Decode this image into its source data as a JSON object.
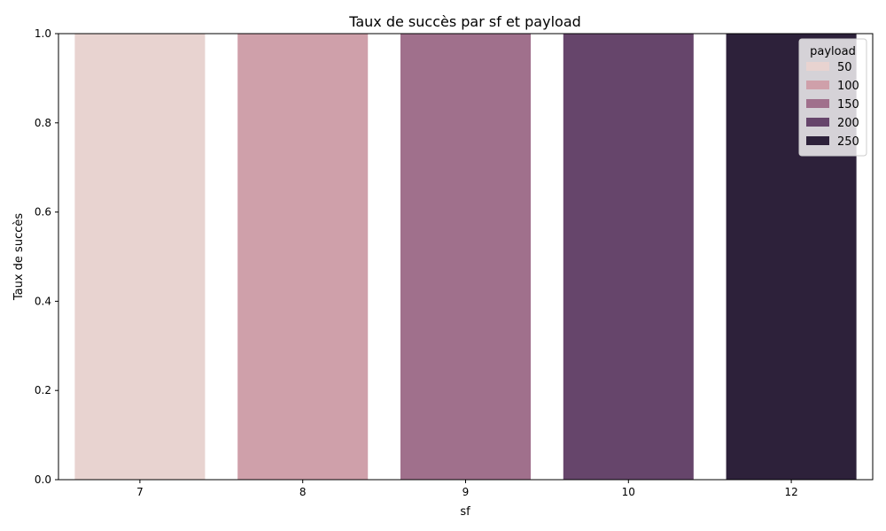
{
  "chart_data": {
    "type": "bar",
    "title": "Taux de succès par sf et payload",
    "xlabel": "sf",
    "ylabel": "Taux de succès",
    "categories": [
      "7",
      "8",
      "9",
      "10",
      "12"
    ],
    "ylim": [
      0,
      1.0
    ],
    "yticks": [
      "0.0",
      "0.2",
      "0.4",
      "0.6",
      "0.8",
      "1.0"
    ],
    "series": [
      {
        "name": "50",
        "color": "#e8d3d0",
        "values": [
          1.0,
          null,
          null,
          null,
          null
        ]
      },
      {
        "name": "100",
        "color": "#cfa0aa",
        "values": [
          null,
          1.0,
          null,
          null,
          null
        ]
      },
      {
        "name": "150",
        "color": "#a0708c",
        "values": [
          null,
          null,
          1.0,
          null,
          null
        ]
      },
      {
        "name": "200",
        "color": "#66456b",
        "values": [
          null,
          null,
          null,
          1.0,
          null
        ]
      },
      {
        "name": "250",
        "color": "#2d213a",
        "values": [
          null,
          null,
          null,
          null,
          1.0
        ]
      }
    ],
    "legend": {
      "title": "payload",
      "position": "top-right"
    },
    "grid": false
  }
}
